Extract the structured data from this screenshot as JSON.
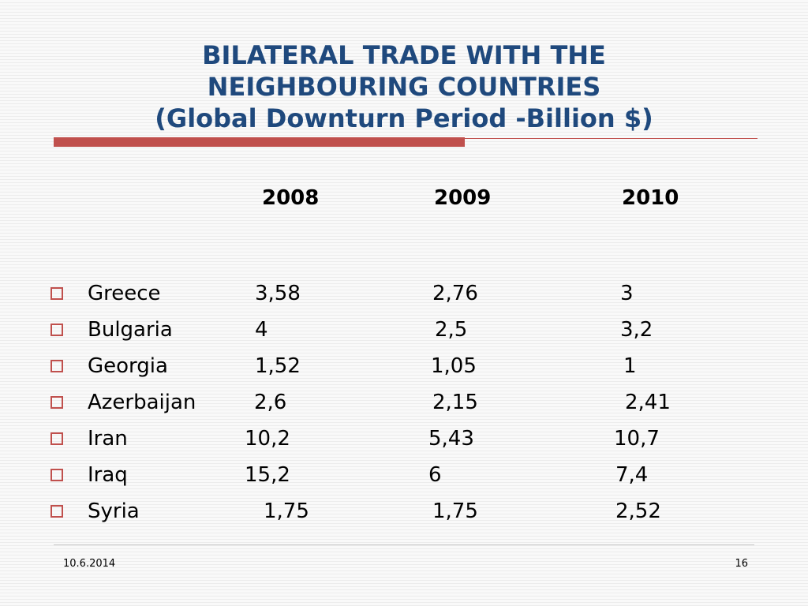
{
  "title": {
    "line1": "BILATERAL TRADE WITH THE",
    "line2": "NEIGHBOURING COUNTRIES",
    "line3": "(Global Downturn Period -Billion $)"
  },
  "columns": [
    "2008",
    "2009",
    "2010"
  ],
  "rows": [
    {
      "country": "Greece",
      "values": [
        "3,58",
        "2,76",
        "3"
      ]
    },
    {
      "country": "Bulgaria",
      "values": [
        "4",
        "2,5",
        "3,2"
      ]
    },
    {
      "country": "Georgia",
      "values": [
        "1,52",
        "1,05",
        "1"
      ]
    },
    {
      "country": "Azerbaijan",
      "values": [
        "2,6",
        "2,15",
        "2,41"
      ]
    },
    {
      "country": "Iran",
      "values": [
        "10,2",
        "5,43",
        "10,7"
      ]
    },
    {
      "country": "Iraq",
      "values": [
        "15,2",
        "6",
        "7,4"
      ]
    },
    {
      "country": "Syria",
      "values": [
        "1,75",
        "1,75",
        "2,52"
      ]
    }
  ],
  "footer": {
    "date": "10.6.2014",
    "page": "16"
  },
  "colors": {
    "title": "#1f497d",
    "accent": "#c0504d"
  }
}
